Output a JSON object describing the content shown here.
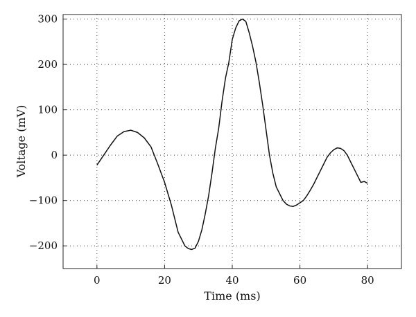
{
  "chart_data": {
    "type": "line",
    "title": "",
    "xlabel": "Time (ms)",
    "ylabel": "Voltage (mV)",
    "xlim": [
      -10,
      90
    ],
    "ylim": [
      -250,
      310
    ],
    "x_ticks": [
      0,
      20,
      40,
      60,
      80
    ],
    "y_ticks": [
      -200,
      -100,
      0,
      100,
      200,
      300
    ],
    "x_tick_labels": [
      "0",
      "20",
      "40",
      "60",
      "80"
    ],
    "y_tick_labels": [
      "−200",
      "−100",
      "0",
      "100",
      "200",
      "300"
    ],
    "grid": true,
    "legend": "none",
    "series": [
      {
        "x": [
          0,
          2,
          4,
          6,
          8,
          10,
          12,
          14,
          16,
          18,
          20,
          22,
          24,
          26,
          27,
          28,
          29,
          30,
          31,
          32,
          33,
          34,
          35,
          36,
          37,
          38,
          39,
          40,
          41,
          42,
          43,
          44,
          45,
          46,
          47,
          48,
          49,
          50,
          51,
          52,
          53,
          54,
          55,
          56,
          57,
          58,
          59,
          60,
          61,
          62,
          63,
          64,
          65,
          66,
          67,
          68,
          69,
          70,
          71,
          72,
          73,
          74,
          75,
          76,
          77,
          78,
          79,
          80
        ],
        "y": [
          -22,
          0,
          22,
          42,
          52,
          55,
          50,
          38,
          18,
          -20,
          -60,
          -110,
          -170,
          -200,
          -206,
          -208,
          -205,
          -190,
          -165,
          -130,
          -90,
          -40,
          15,
          60,
          120,
          170,
          205,
          255,
          280,
          296,
          300,
          295,
          270,
          240,
          205,
          160,
          110,
          55,
          0,
          -40,
          -70,
          -85,
          -100,
          -108,
          -112,
          -113,
          -110,
          -105,
          -100,
          -90,
          -78,
          -65,
          -50,
          -35,
          -20,
          -5,
          5,
          12,
          16,
          15,
          10,
          0,
          -15,
          -30,
          -45,
          -60,
          -58,
          -62
        ]
      }
    ]
  }
}
